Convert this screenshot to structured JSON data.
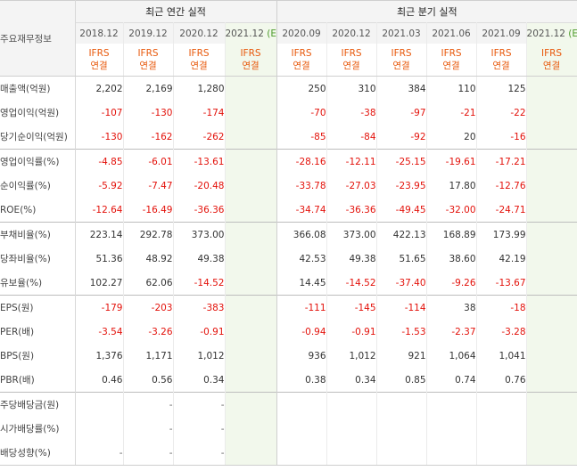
{
  "header": {
    "corner_label": "주요재무정보",
    "annual_group": "최근 연간 실적",
    "quarter_group": "최근 분기 실적",
    "ifrs_line1": "IFRS",
    "ifrs_line2": "연결",
    "estimate_marker": "(E)",
    "annual_periods": [
      {
        "label": "2018.12",
        "estimate": false
      },
      {
        "label": "2019.12",
        "estimate": false
      },
      {
        "label": "2020.12",
        "estimate": false
      },
      {
        "label": "2021.12",
        "estimate": true
      }
    ],
    "quarter_periods": [
      {
        "label": "2020.09",
        "estimate": false
      },
      {
        "label": "2020.12",
        "estimate": false
      },
      {
        "label": "2021.03",
        "estimate": false
      },
      {
        "label": "2021.06",
        "estimate": false
      },
      {
        "label": "2021.09",
        "estimate": false
      },
      {
        "label": "2021.12",
        "estimate": true
      }
    ]
  },
  "colors": {
    "negative": "#e3120b",
    "ifrs": "#e8590c",
    "estimate_bg": "#f2f8ec",
    "estimate_marker": "#4c9a2a"
  },
  "rows": [
    {
      "label": "매출액(억원)",
      "annual": [
        "2,202",
        "2,169",
        "1,280",
        ""
      ],
      "quarter": [
        "250",
        "310",
        "384",
        "110",
        "125",
        ""
      ]
    },
    {
      "label": "영업이익(억원)",
      "annual": [
        "-107",
        "-130",
        "-174",
        ""
      ],
      "quarter": [
        "-70",
        "-38",
        "-97",
        "-21",
        "-22",
        ""
      ]
    },
    {
      "label": "당기순이익(억원)",
      "annual": [
        "-130",
        "-162",
        "-262",
        ""
      ],
      "quarter": [
        "-85",
        "-84",
        "-92",
        "20",
        "-16",
        ""
      ]
    },
    {
      "label": "영업이익률(%)",
      "annual": [
        "-4.85",
        "-6.01",
        "-13.61",
        ""
      ],
      "quarter": [
        "-28.16",
        "-12.11",
        "-25.15",
        "-19.61",
        "-17.21",
        ""
      ]
    },
    {
      "label": "순이익률(%)",
      "annual": [
        "-5.92",
        "-7.47",
        "-20.48",
        ""
      ],
      "quarter": [
        "-33.78",
        "-27.03",
        "-23.95",
        "17.80",
        "-12.76",
        ""
      ]
    },
    {
      "label": "ROE(%)",
      "annual": [
        "-12.64",
        "-16.49",
        "-36.36",
        ""
      ],
      "quarter": [
        "-34.74",
        "-36.36",
        "-49.45",
        "-32.00",
        "-24.71",
        ""
      ]
    },
    {
      "label": "부채비율(%)",
      "annual": [
        "223.14",
        "292.78",
        "373.00",
        ""
      ],
      "quarter": [
        "366.08",
        "373.00",
        "422.13",
        "168.89",
        "173.99",
        ""
      ]
    },
    {
      "label": "당좌비율(%)",
      "annual": [
        "51.36",
        "48.92",
        "49.38",
        ""
      ],
      "quarter": [
        "42.53",
        "49.38",
        "51.65",
        "38.60",
        "42.19",
        ""
      ]
    },
    {
      "label": "유보율(%)",
      "annual": [
        "102.27",
        "62.06",
        "-14.52",
        ""
      ],
      "quarter": [
        "14.45",
        "-14.52",
        "-37.40",
        "-9.26",
        "-13.67",
        ""
      ]
    },
    {
      "label": "EPS(원)",
      "annual": [
        "-179",
        "-203",
        "-383",
        ""
      ],
      "quarter": [
        "-111",
        "-145",
        "-114",
        "38",
        "-18",
        ""
      ]
    },
    {
      "label": "PER(배)",
      "annual": [
        "-3.54",
        "-3.26",
        "-0.91",
        ""
      ],
      "quarter": [
        "-0.94",
        "-0.91",
        "-1.53",
        "-2.37",
        "-3.28",
        ""
      ]
    },
    {
      "label": "BPS(원)",
      "annual": [
        "1,376",
        "1,171",
        "1,012",
        ""
      ],
      "quarter": [
        "936",
        "1,012",
        "921",
        "1,064",
        "1,041",
        ""
      ]
    },
    {
      "label": "PBR(배)",
      "annual": [
        "0.46",
        "0.56",
        "0.34",
        ""
      ],
      "quarter": [
        "0.38",
        "0.34",
        "0.85",
        "0.74",
        "0.76",
        ""
      ]
    },
    {
      "label": "주당배당금(원)",
      "annual": [
        "",
        "-",
        "-",
        ""
      ],
      "quarter": [
        "",
        "",
        "",
        "",
        "",
        ""
      ]
    },
    {
      "label": "시가배당률(%)",
      "annual": [
        "",
        "-",
        "-",
        ""
      ],
      "quarter": [
        "",
        "",
        "",
        "",
        "",
        ""
      ]
    },
    {
      "label": "배당성향(%)",
      "annual": [
        "-",
        "-",
        "-",
        ""
      ],
      "quarter": [
        "",
        "",
        "",
        "",
        "",
        ""
      ]
    }
  ]
}
